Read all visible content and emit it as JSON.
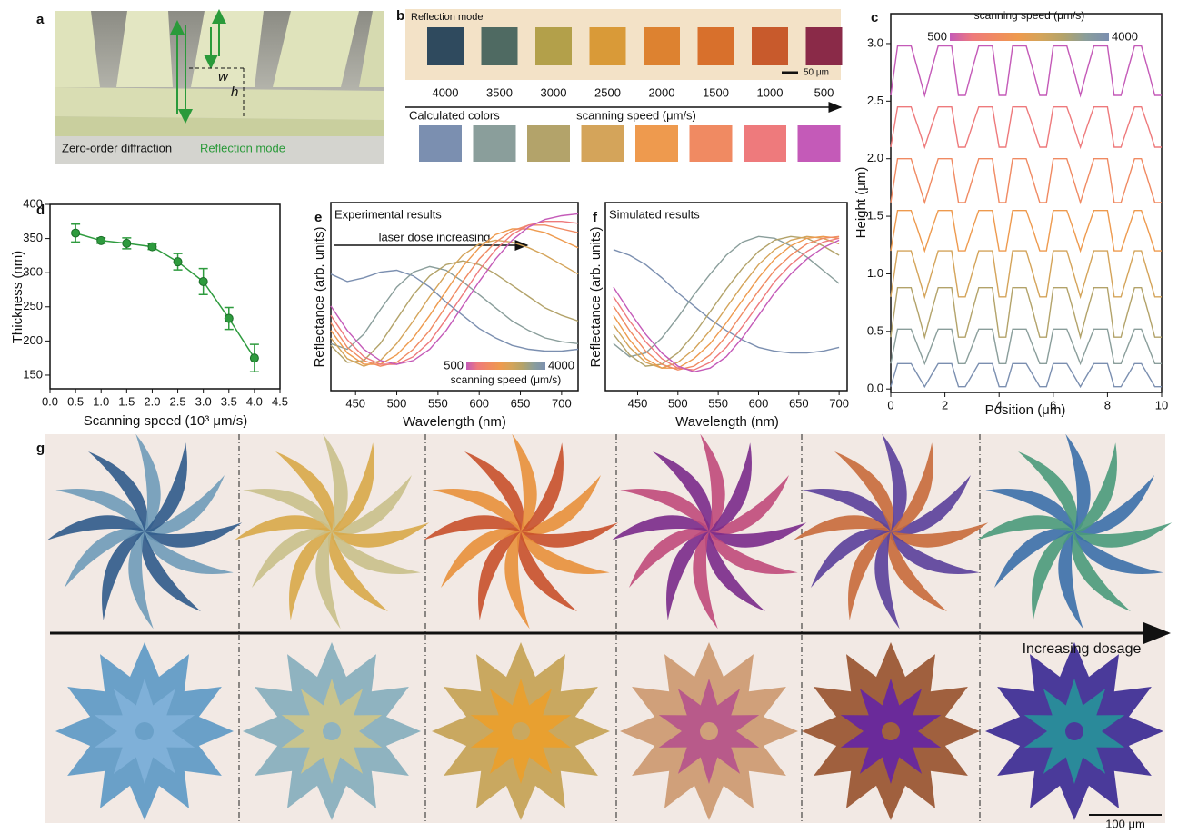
{
  "panel_a": {
    "label": "a",
    "w_label": "w",
    "h_label": "h",
    "caption": "Zero-order diffraction",
    "mode": "Reflection mode"
  },
  "panel_b": {
    "label": "b",
    "mode": "Reflection mode",
    "scale_bar": "50 μm",
    "speeds": [
      4000,
      3500,
      3000,
      2500,
      2000,
      1500,
      1000,
      500
    ],
    "measured_colors": [
      "#2f4a5e",
      "#4f6a62",
      "#b3a04a",
      "#d99a38",
      "#dd8230",
      "#d8702c",
      "#c85a2c",
      "#8a2a48"
    ],
    "calculated_label": "Calculated colors",
    "axis_label": "scanning speed (μm/s)",
    "calculated_colors": [
      "#7b8fb0",
      "#8a9e9b",
      "#b3a36a",
      "#d4a45a",
      "#ee9a4e",
      "#f08a62",
      "#ee7a7c",
      "#c45ab8"
    ]
  },
  "panel_g": {
    "label": "g",
    "arrow_label": "Increasing dosage",
    "scale_bar": "100 μm"
  },
  "chart_data": [
    {
      "type": "line",
      "label": "c",
      "xlabel": "Position (μm)",
      "ylabel": "Height (μm)",
      "xlim": [
        0,
        10
      ],
      "xticks": [
        0,
        2,
        4,
        6,
        8,
        10
      ],
      "ylim": [
        -0.03,
        3.26
      ],
      "yticks": [
        {
          "value": 0,
          "label": "0.0"
        },
        0.5,
        {
          "value": 1,
          "label": "1.0"
        },
        1.5,
        {
          "value": 2,
          "label": "2.0"
        },
        2.5,
        {
          "value": 3,
          "label": "3.0"
        }
      ],
      "colorbar": {
        "min": 500,
        "max": 4000,
        "label": "scanning speed (μm/s)"
      },
      "x": [
        0,
        0.25,
        0.5,
        0.75,
        1,
        1.25,
        1.5,
        1.75,
        2,
        2.25,
        2.5,
        2.75,
        3,
        3.25,
        3.5,
        3.75,
        4,
        4.25,
        4.5,
        4.75,
        5,
        5.25,
        5.5,
        5.75,
        6,
        6.25,
        6.5,
        6.75,
        7,
        7.25,
        7.5,
        7.75,
        8,
        8.25,
        8.5,
        8.75,
        9,
        9.25,
        9.5,
        9.75,
        10
      ],
      "series": [
        {
          "color": "#7b8fb0",
          "values": [
            0.02,
            0.22,
            0.22,
            0.22,
            0.12,
            0.02,
            0.12,
            0.22,
            0.22,
            0.22,
            0.02,
            0.02,
            0.12,
            0.22,
            0.22,
            0.22,
            0.02,
            0.02,
            0.22,
            0.22,
            0.22,
            0.12,
            0.02,
            0.02,
            0.22,
            0.22,
            0.22,
            0.12,
            0.02,
            0.12,
            0.22,
            0.22,
            0.22,
            0.02,
            0.02,
            0.12,
            0.22,
            0.22,
            0.12,
            0.02,
            0.02
          ]
        },
        {
          "color": "#8a9e9b",
          "values": [
            0.22,
            0.52,
            0.52,
            0.52,
            0.37,
            0.22,
            0.37,
            0.52,
            0.52,
            0.52,
            0.22,
            0.22,
            0.37,
            0.52,
            0.52,
            0.52,
            0.22,
            0.22,
            0.52,
            0.52,
            0.52,
            0.37,
            0.22,
            0.22,
            0.52,
            0.52,
            0.52,
            0.37,
            0.22,
            0.37,
            0.52,
            0.52,
            0.52,
            0.22,
            0.22,
            0.37,
            0.52,
            0.52,
            0.37,
            0.22,
            0.22
          ]
        },
        {
          "color": "#b3a36a",
          "values": [
            0.45,
            0.88,
            0.88,
            0.88,
            0.67,
            0.45,
            0.67,
            0.88,
            0.88,
            0.88,
            0.45,
            0.45,
            0.67,
            0.88,
            0.88,
            0.88,
            0.45,
            0.45,
            0.88,
            0.88,
            0.88,
            0.67,
            0.45,
            0.45,
            0.88,
            0.88,
            0.88,
            0.67,
            0.45,
            0.67,
            0.88,
            0.88,
            0.88,
            0.45,
            0.45,
            0.67,
            0.88,
            0.88,
            0.67,
            0.45,
            0.45
          ]
        },
        {
          "color": "#d4a45a",
          "values": [
            0.8,
            1.2,
            1.2,
            1.2,
            1,
            0.8,
            1,
            1.2,
            1.2,
            1.2,
            0.8,
            0.8,
            1,
            1.2,
            1.2,
            1.2,
            0.8,
            0.8,
            1.2,
            1.2,
            1.2,
            1,
            0.8,
            0.8,
            1.2,
            1.2,
            1.2,
            1,
            0.8,
            1,
            1.2,
            1.2,
            1.2,
            0.8,
            0.8,
            1,
            1.2,
            1.2,
            1,
            0.8,
            0.8
          ]
        },
        {
          "color": "#ee9a4e",
          "values": [
            1.2,
            1.55,
            1.55,
            1.55,
            1.38,
            1.2,
            1.38,
            1.55,
            1.55,
            1.55,
            1.2,
            1.2,
            1.38,
            1.55,
            1.55,
            1.55,
            1.2,
            1.2,
            1.55,
            1.55,
            1.55,
            1.38,
            1.2,
            1.2,
            1.55,
            1.55,
            1.55,
            1.38,
            1.2,
            1.38,
            1.55,
            1.55,
            1.55,
            1.2,
            1.2,
            1.38,
            1.55,
            1.55,
            1.38,
            1.2,
            1.2
          ]
        },
        {
          "color": "#f08a62",
          "values": [
            1.62,
            2,
            2,
            2,
            1.81,
            1.62,
            1.81,
            2,
            2,
            2,
            1.62,
            1.62,
            1.81,
            2,
            2,
            2,
            1.62,
            1.62,
            2,
            2,
            2,
            1.81,
            1.62,
            1.62,
            2,
            2,
            2,
            1.81,
            1.62,
            1.81,
            2,
            2,
            2,
            1.62,
            1.62,
            1.81,
            2,
            2,
            1.81,
            1.62,
            1.62
          ]
        },
        {
          "color": "#ee7a7c",
          "values": [
            2.1,
            2.45,
            2.45,
            2.45,
            2.28,
            2.1,
            2.28,
            2.45,
            2.45,
            2.45,
            2.1,
            2.1,
            2.28,
            2.45,
            2.45,
            2.45,
            2.1,
            2.1,
            2.45,
            2.45,
            2.45,
            2.28,
            2.1,
            2.1,
            2.45,
            2.45,
            2.45,
            2.28,
            2.1,
            2.28,
            2.45,
            2.45,
            2.45,
            2.1,
            2.1,
            2.28,
            2.45,
            2.45,
            2.28,
            2.1,
            2.1
          ]
        },
        {
          "color": "#c45ab8",
          "values": [
            2.55,
            2.98,
            2.98,
            2.98,
            2.77,
            2.55,
            2.77,
            2.98,
            2.98,
            2.98,
            2.55,
            2.55,
            2.77,
            2.98,
            2.98,
            2.98,
            2.55,
            2.55,
            2.98,
            2.98,
            2.98,
            2.77,
            2.55,
            2.55,
            2.98,
            2.98,
            2.98,
            2.77,
            2.55,
            2.77,
            2.98,
            2.98,
            2.98,
            2.55,
            2.55,
            2.77,
            2.98,
            2.98,
            2.77,
            2.55,
            2.55
          ]
        }
      ]
    },
    {
      "type": "errorbar",
      "label": "d",
      "xlabel": "Scanning speed (10³ μm/s)",
      "ylabel": "Thickness (nm)",
      "color": "#2e9b3e",
      "xlim": [
        0,
        4.5
      ],
      "xticks": [
        {
          "value": 0,
          "label": "0.0"
        },
        0.5,
        {
          "value": 1,
          "label": "1.0"
        },
        1.5,
        {
          "value": 2,
          "label": "2.0"
        },
        2.5,
        {
          "value": 3,
          "label": "3.0"
        },
        3.5,
        {
          "value": 4,
          "label": "4.0"
        },
        4.5
      ],
      "ylim": [
        130,
        400
      ],
      "yticks": [
        150,
        200,
        250,
        300,
        350,
        400
      ],
      "x": [
        0.5,
        1,
        1.5,
        2,
        2.5,
        3,
        3.5,
        4
      ],
      "values": [
        358,
        347,
        343,
        338,
        316,
        287,
        233,
        175
      ],
      "errors": [
        13,
        4,
        8,
        4,
        12,
        19,
        16,
        20
      ]
    },
    {
      "type": "line",
      "label": "e",
      "xlabel": "Wavelength (nm)",
      "ylabel": "Reflectance (arb. units)",
      "annotations": [
        "Experimental results",
        "laser dose increasing"
      ],
      "xlim": [
        420,
        720
      ],
      "xticks": [
        450,
        500,
        550,
        600,
        650,
        700
      ],
      "ylim": [
        0,
        1
      ],
      "colorbar": {
        "min": 500,
        "max": 4000,
        "label": "scanning speed (μm/s)"
      },
      "x": [
        420,
        440,
        460,
        480,
        500,
        520,
        540,
        560,
        580,
        600,
        620,
        640,
        660,
        680,
        700,
        720
      ],
      "series": [
        {
          "color": "#7b8fb0",
          "values": [
            0.62,
            0.58,
            0.6,
            0.63,
            0.64,
            0.61,
            0.55,
            0.47,
            0.4,
            0.33,
            0.28,
            0.24,
            0.22,
            0.21,
            0.21,
            0.22
          ]
        },
        {
          "color": "#8a9e9b",
          "values": [
            0.25,
            0.22,
            0.3,
            0.43,
            0.55,
            0.63,
            0.66,
            0.64,
            0.58,
            0.51,
            0.44,
            0.37,
            0.32,
            0.28,
            0.26,
            0.25
          ]
        },
        {
          "color": "#b3a36a",
          "values": [
            0.24,
            0.15,
            0.16,
            0.25,
            0.38,
            0.51,
            0.61,
            0.67,
            0.69,
            0.67,
            0.62,
            0.56,
            0.5,
            0.44,
            0.4,
            0.37
          ]
        },
        {
          "color": "#d4a45a",
          "values": [
            0.28,
            0.17,
            0.13,
            0.16,
            0.25,
            0.37,
            0.5,
            0.62,
            0.72,
            0.78,
            0.8,
            0.79,
            0.76,
            0.72,
            0.67,
            0.62
          ]
        },
        {
          "color": "#ee9a4e",
          "values": [
            0.32,
            0.2,
            0.14,
            0.14,
            0.19,
            0.28,
            0.4,
            0.53,
            0.66,
            0.76,
            0.83,
            0.86,
            0.86,
            0.84,
            0.8,
            0.76
          ]
        },
        {
          "color": "#f08a62",
          "values": [
            0.36,
            0.23,
            0.16,
            0.13,
            0.15,
            0.22,
            0.32,
            0.45,
            0.58,
            0.7,
            0.79,
            0.85,
            0.88,
            0.88,
            0.86,
            0.84
          ]
        },
        {
          "color": "#ee7a7c",
          "values": [
            0.4,
            0.27,
            0.18,
            0.14,
            0.14,
            0.18,
            0.26,
            0.38,
            0.51,
            0.64,
            0.75,
            0.83,
            0.88,
            0.9,
            0.9,
            0.89
          ]
        },
        {
          "color": "#c45ab8",
          "values": [
            0.45,
            0.32,
            0.22,
            0.16,
            0.14,
            0.16,
            0.22,
            0.32,
            0.45,
            0.58,
            0.7,
            0.8,
            0.87,
            0.91,
            0.93,
            0.94
          ]
        }
      ]
    },
    {
      "type": "line",
      "label": "f",
      "xlabel": "Wavelength (nm)",
      "ylabel": "Reflectance (arb. units)",
      "annotations": [
        "Simulated results"
      ],
      "xlim": [
        410,
        710
      ],
      "xticks": [
        450,
        500,
        550,
        600,
        650,
        700
      ],
      "ylim": [
        0,
        1
      ],
      "x": [
        420,
        440,
        460,
        480,
        500,
        520,
        540,
        560,
        580,
        600,
        620,
        640,
        660,
        680,
        700
      ],
      "series": [
        {
          "color": "#7b8fb0",
          "values": [
            0.75,
            0.72,
            0.67,
            0.6,
            0.52,
            0.45,
            0.38,
            0.32,
            0.27,
            0.23,
            0.21,
            0.2,
            0.2,
            0.21,
            0.23
          ]
        },
        {
          "color": "#8a9e9b",
          "values": [
            0.25,
            0.18,
            0.2,
            0.28,
            0.39,
            0.51,
            0.62,
            0.72,
            0.79,
            0.82,
            0.81,
            0.77,
            0.71,
            0.64,
            0.57
          ]
        },
        {
          "color": "#b3a36a",
          "values": [
            0.3,
            0.19,
            0.13,
            0.14,
            0.2,
            0.3,
            0.42,
            0.54,
            0.65,
            0.74,
            0.8,
            0.82,
            0.81,
            0.77,
            0.72
          ]
        },
        {
          "color": "#d4a45a",
          "values": [
            0.35,
            0.23,
            0.15,
            0.12,
            0.15,
            0.22,
            0.32,
            0.44,
            0.56,
            0.67,
            0.75,
            0.8,
            0.82,
            0.81,
            0.78
          ]
        },
        {
          "color": "#ee9a4e",
          "values": [
            0.4,
            0.27,
            0.17,
            0.12,
            0.12,
            0.17,
            0.25,
            0.36,
            0.48,
            0.6,
            0.7,
            0.77,
            0.81,
            0.82,
            0.81
          ]
        },
        {
          "color": "#f08a62",
          "values": [
            0.45,
            0.32,
            0.21,
            0.14,
            0.11,
            0.13,
            0.19,
            0.29,
            0.41,
            0.53,
            0.64,
            0.72,
            0.78,
            0.81,
            0.82
          ]
        },
        {
          "color": "#ee7a7c",
          "values": [
            0.5,
            0.37,
            0.26,
            0.17,
            0.12,
            0.11,
            0.15,
            0.23,
            0.34,
            0.46,
            0.58,
            0.67,
            0.74,
            0.79,
            0.81
          ]
        },
        {
          "color": "#c45ab8",
          "values": [
            0.55,
            0.42,
            0.3,
            0.2,
            0.13,
            0.1,
            0.12,
            0.18,
            0.28,
            0.4,
            0.52,
            0.62,
            0.7,
            0.76,
            0.8
          ]
        }
      ]
    }
  ]
}
